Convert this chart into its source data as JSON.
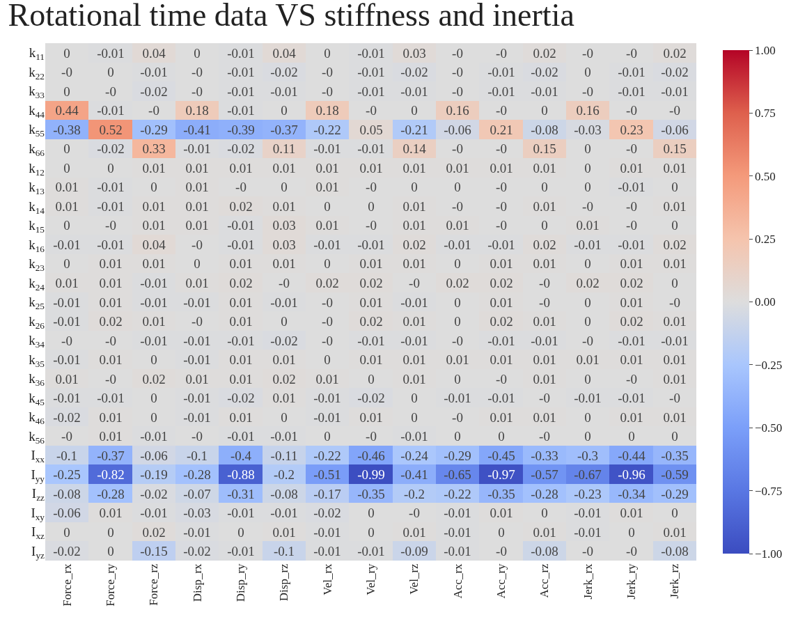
{
  "chart_data": {
    "type": "heatmap",
    "title": "Rotational time data VS stiffness and inertia",
    "categories": [
      "Force_rx",
      "Force_ry",
      "Force_rz",
      "Disp_rx",
      "Disp_ry",
      "Disp_rz",
      "Vel_rx",
      "Vel_ry",
      "Vel_rz",
      "Acc_rx",
      "Acc_ry",
      "Acc_rz",
      "Jerk_rx",
      "Jerk_ry",
      "Jerk_rz"
    ],
    "y_categories": [
      "k$_{11}$",
      "k$_{22}$",
      "k$_{33}$",
      "k$_{44}$",
      "k$_{55}$",
      "k$_{66}$",
      "k$_{12}$",
      "k$_{13}$",
      "k$_{14}$",
      "k$_{15}$",
      "k$_{16}$",
      "k$_{23}$",
      "k$_{24}$",
      "k$_{25}$",
      "k$_{26}$",
      "k$_{34}$",
      "k$_{35}$",
      "k$_{36}$",
      "k$_{45}$",
      "k$_{46}$",
      "k$_{56}$",
      "I$_{xx}$",
      "I$_{yy}$",
      "I$_{zz}$",
      "I$_{xy}$",
      "I$_{xz}$",
      "I$_{yz}$"
    ],
    "cell_labels": [
      [
        "0",
        "-0.01",
        "0.04",
        "0",
        "-0.01",
        "0.04",
        "0",
        "-0.01",
        "0.03",
        "-0",
        "-0",
        "0.02",
        "-0",
        "-0",
        "0.02"
      ],
      [
        "-0",
        "0",
        "-0.01",
        "-0",
        "-0.01",
        "-0.02",
        "-0",
        "-0.01",
        "-0.02",
        "-0",
        "-0.01",
        "-0.02",
        "0",
        "-0.01",
        "-0.02"
      ],
      [
        "0",
        "-0",
        "-0.02",
        "-0",
        "-0.01",
        "-0.01",
        "-0",
        "-0.01",
        "-0.01",
        "-0",
        "-0.01",
        "-0.01",
        "-0",
        "-0.01",
        "-0.01"
      ],
      [
        "0.44",
        "-0.01",
        "-0",
        "0.18",
        "-0.01",
        "0",
        "0.18",
        "-0",
        "0",
        "0.16",
        "-0",
        "0",
        "0.16",
        "-0",
        "-0"
      ],
      [
        "-0.38",
        "0.52",
        "-0.29",
        "-0.41",
        "-0.39",
        "-0.37",
        "-0.22",
        "0.05",
        "-0.21",
        "-0.06",
        "0.21",
        "-0.08",
        "-0.03",
        "0.23",
        "-0.06"
      ],
      [
        "0",
        "-0.02",
        "0.33",
        "-0.01",
        "-0.02",
        "0.11",
        "-0.01",
        "-0.01",
        "0.14",
        "-0",
        "-0",
        "0.15",
        "0",
        "-0",
        "0.15"
      ],
      [
        "0",
        "0",
        "0.01",
        "0.01",
        "0.01",
        "0.01",
        "0.01",
        "0.01",
        "0.01",
        "0.01",
        "0.01",
        "0.01",
        "0",
        "0.01",
        "0.01"
      ],
      [
        "0.01",
        "-0.01",
        "0",
        "0.01",
        "-0",
        "0",
        "0.01",
        "-0",
        "0",
        "0",
        "-0",
        "0",
        "0",
        "-0.01",
        "0"
      ],
      [
        "0.01",
        "-0.01",
        "0.01",
        "0.01",
        "0.02",
        "0.01",
        "0",
        "0",
        "0.01",
        "-0",
        "-0",
        "0.01",
        "-0",
        "-0",
        "0.01"
      ],
      [
        "0",
        "-0",
        "0.01",
        "0.01",
        "-0.01",
        "0.03",
        "0.01",
        "-0",
        "0.01",
        "0.01",
        "-0",
        "0",
        "0.01",
        "-0",
        "0"
      ],
      [
        "-0.01",
        "-0.01",
        "0.04",
        "-0",
        "-0.01",
        "0.03",
        "-0.01",
        "-0.01",
        "0.02",
        "-0.01",
        "-0.01",
        "0.02",
        "-0.01",
        "-0.01",
        "0.02"
      ],
      [
        "0",
        "0.01",
        "0.01",
        "0",
        "0.01",
        "0.01",
        "0",
        "0.01",
        "0.01",
        "0",
        "0.01",
        "0.01",
        "0",
        "0.01",
        "0.01"
      ],
      [
        "0.01",
        "0.01",
        "-0.01",
        "0.01",
        "0.02",
        "-0",
        "0.02",
        "0.02",
        "-0",
        "0.02",
        "0.02",
        "-0",
        "0.02",
        "0.02",
        "0"
      ],
      [
        "-0.01",
        "0.01",
        "-0.01",
        "-0.01",
        "0.01",
        "-0.01",
        "-0",
        "0.01",
        "-0.01",
        "0",
        "0.01",
        "-0",
        "0",
        "0.01",
        "-0"
      ],
      [
        "-0.01",
        "0.02",
        "0.01",
        "-0",
        "0.01",
        "0",
        "-0",
        "0.02",
        "0.01",
        "0",
        "0.02",
        "0.01",
        "0",
        "0.02",
        "0.01"
      ],
      [
        "-0",
        "-0",
        "-0.01",
        "-0.01",
        "-0.01",
        "-0.02",
        "-0",
        "-0.01",
        "-0.01",
        "-0",
        "-0.01",
        "-0.01",
        "-0",
        "-0.01",
        "-0.01"
      ],
      [
        "-0.01",
        "0.01",
        "0",
        "-0.01",
        "0.01",
        "0.01",
        "0",
        "0.01",
        "0.01",
        "0.01",
        "0.01",
        "0.01",
        "0.01",
        "0.01",
        "0.01"
      ],
      [
        "0.01",
        "-0",
        "0.02",
        "0.01",
        "0.01",
        "0.02",
        "0.01",
        "0",
        "0.01",
        "0",
        "-0",
        "0.01",
        "0",
        "-0",
        "0.01"
      ],
      [
        "-0.01",
        "-0.01",
        "0",
        "-0.01",
        "-0.02",
        "0.01",
        "-0.01",
        "-0.02",
        "0",
        "-0.01",
        "-0.01",
        "-0",
        "-0.01",
        "-0.01",
        "-0"
      ],
      [
        "-0.02",
        "0.01",
        "0",
        "-0.01",
        "0.01",
        "0",
        "-0.01",
        "0.01",
        "0",
        "-0",
        "0.01",
        "0.01",
        "0",
        "0.01",
        "0.01"
      ],
      [
        "-0",
        "0.01",
        "-0.01",
        "-0",
        "-0.01",
        "-0.01",
        "0",
        "-0",
        "-0.01",
        "0",
        "0",
        "-0",
        "0",
        "0",
        "0"
      ],
      [
        "-0.1",
        "-0.37",
        "-0.06",
        "-0.1",
        "-0.4",
        "-0.11",
        "-0.22",
        "-0.46",
        "-0.24",
        "-0.29",
        "-0.45",
        "-0.33",
        "-0.3",
        "-0.44",
        "-0.35"
      ],
      [
        "-0.25",
        "-0.82",
        "-0.19",
        "-0.28",
        "-0.88",
        "-0.2",
        "-0.51",
        "-0.99",
        "-0.41",
        "-0.65",
        "-0.97",
        "-0.57",
        "-0.67",
        "-0.96",
        "-0.59"
      ],
      [
        "-0.08",
        "-0.28",
        "-0.02",
        "-0.07",
        "-0.31",
        "-0.08",
        "-0.17",
        "-0.35",
        "-0.2",
        "-0.22",
        "-0.35",
        "-0.28",
        "-0.23",
        "-0.34",
        "-0.29"
      ],
      [
        "-0.06",
        "0.01",
        "-0.01",
        "-0.03",
        "-0.01",
        "-0.01",
        "-0.02",
        "0",
        "-0",
        "-0.01",
        "0.01",
        "0",
        "-0.01",
        "0.01",
        "0"
      ],
      [
        "0",
        "0",
        "0.02",
        "-0.01",
        "0",
        "0.01",
        "-0.01",
        "0",
        "0.01",
        "-0.01",
        "0",
        "0.01",
        "-0.01",
        "0",
        "0.01"
      ],
      [
        "-0.02",
        "0",
        "-0.15",
        "-0.02",
        "-0.01",
        "-0.1",
        "-0.01",
        "-0.01",
        "-0.09",
        "-0.01",
        "-0",
        "-0.08",
        "-0",
        "-0",
        "-0.08"
      ]
    ],
    "cells": [
      [
        0,
        -0.01,
        0.04,
        0,
        -0.01,
        0.04,
        0,
        -0.01,
        0.03,
        0,
        0,
        0.02,
        0,
        0,
        0.02
      ],
      [
        0,
        0,
        -0.01,
        0,
        -0.01,
        -0.02,
        0,
        -0.01,
        -0.02,
        0,
        -0.01,
        -0.02,
        0,
        -0.01,
        -0.02
      ],
      [
        0,
        0,
        -0.02,
        0,
        -0.01,
        -0.01,
        0,
        -0.01,
        -0.01,
        0,
        -0.01,
        -0.01,
        0,
        -0.01,
        -0.01
      ],
      [
        0.44,
        -0.01,
        0,
        0.18,
        -0.01,
        0,
        0.18,
        0,
        0,
        0.16,
        0,
        0,
        0.16,
        0,
        0
      ],
      [
        -0.38,
        0.52,
        -0.29,
        -0.41,
        -0.39,
        -0.37,
        -0.22,
        0.05,
        -0.21,
        -0.06,
        0.21,
        -0.08,
        -0.03,
        0.23,
        -0.06
      ],
      [
        0,
        -0.02,
        0.33,
        -0.01,
        -0.02,
        0.11,
        -0.01,
        -0.01,
        0.14,
        0,
        0,
        0.15,
        0,
        0,
        0.15
      ],
      [
        0,
        0,
        0.01,
        0.01,
        0.01,
        0.01,
        0.01,
        0.01,
        0.01,
        0.01,
        0.01,
        0.01,
        0,
        0.01,
        0.01
      ],
      [
        0.01,
        -0.01,
        0,
        0.01,
        0,
        0,
        0.01,
        0,
        0,
        0,
        0,
        0,
        0,
        -0.01,
        0
      ],
      [
        0.01,
        -0.01,
        0.01,
        0.01,
        0.02,
        0.01,
        0,
        0,
        0.01,
        0,
        0,
        0.01,
        0,
        0,
        0.01
      ],
      [
        0,
        0,
        0.01,
        0.01,
        -0.01,
        0.03,
        0.01,
        0,
        0.01,
        0.01,
        0,
        0,
        0.01,
        0,
        0
      ],
      [
        -0.01,
        -0.01,
        0.04,
        0,
        -0.01,
        0.03,
        -0.01,
        -0.01,
        0.02,
        -0.01,
        -0.01,
        0.02,
        -0.01,
        -0.01,
        0.02
      ],
      [
        0,
        0.01,
        0.01,
        0,
        0.01,
        0.01,
        0,
        0.01,
        0.01,
        0,
        0.01,
        0.01,
        0,
        0.01,
        0.01
      ],
      [
        0.01,
        0.01,
        -0.01,
        0.01,
        0.02,
        0,
        0.02,
        0.02,
        0,
        0.02,
        0.02,
        0,
        0.02,
        0.02,
        0
      ],
      [
        -0.01,
        0.01,
        -0.01,
        -0.01,
        0.01,
        -0.01,
        0,
        0.01,
        -0.01,
        0,
        0.01,
        0,
        0,
        0.01,
        0
      ],
      [
        -0.01,
        0.02,
        0.01,
        0,
        0.01,
        0,
        0,
        0.02,
        0.01,
        0,
        0.02,
        0.01,
        0,
        0.02,
        0.01
      ],
      [
        0,
        0,
        -0.01,
        -0.01,
        -0.01,
        -0.02,
        0,
        -0.01,
        -0.01,
        0,
        -0.01,
        -0.01,
        0,
        -0.01,
        -0.01
      ],
      [
        -0.01,
        0.01,
        0,
        -0.01,
        0.01,
        0.01,
        0,
        0.01,
        0.01,
        0.01,
        0.01,
        0.01,
        0.01,
        0.01,
        0.01
      ],
      [
        0.01,
        0,
        0.02,
        0.01,
        0.01,
        0.02,
        0.01,
        0,
        0.01,
        0,
        0,
        0.01,
        0,
        0,
        0.01
      ],
      [
        -0.01,
        -0.01,
        0,
        -0.01,
        -0.02,
        0.01,
        -0.01,
        -0.02,
        0,
        -0.01,
        -0.01,
        0,
        -0.01,
        -0.01,
        0
      ],
      [
        -0.02,
        0.01,
        0,
        -0.01,
        0.01,
        0,
        -0.01,
        0.01,
        0,
        0,
        0.01,
        0.01,
        0,
        0.01,
        0.01
      ],
      [
        0,
        0.01,
        -0.01,
        0,
        -0.01,
        -0.01,
        0,
        0,
        -0.01,
        0,
        0,
        0,
        0,
        0,
        0
      ],
      [
        -0.1,
        -0.37,
        -0.06,
        -0.1,
        -0.4,
        -0.11,
        -0.22,
        -0.46,
        -0.24,
        -0.29,
        -0.45,
        -0.33,
        -0.3,
        -0.44,
        -0.35
      ],
      [
        -0.25,
        -0.82,
        -0.19,
        -0.28,
        -0.88,
        -0.2,
        -0.51,
        -0.99,
        -0.41,
        -0.65,
        -0.97,
        -0.57,
        -0.67,
        -0.96,
        -0.59
      ],
      [
        -0.08,
        -0.28,
        -0.02,
        -0.07,
        -0.31,
        -0.08,
        -0.17,
        -0.35,
        -0.2,
        -0.22,
        -0.35,
        -0.28,
        -0.23,
        -0.34,
        -0.29
      ],
      [
        -0.06,
        0.01,
        -0.01,
        -0.03,
        -0.01,
        -0.01,
        -0.02,
        0,
        0,
        -0.01,
        0.01,
        0,
        -0.01,
        0.01,
        0
      ],
      [
        0,
        0,
        0.02,
        -0.01,
        0,
        0.01,
        -0.01,
        0,
        0.01,
        -0.01,
        0,
        0.01,
        -0.01,
        0,
        0.01
      ],
      [
        -0.02,
        0,
        -0.15,
        -0.02,
        -0.01,
        -0.1,
        -0.01,
        -0.01,
        -0.09,
        -0.01,
        0,
        -0.08,
        0,
        0,
        -0.08
      ]
    ],
    "clim": [
      -1,
      1
    ],
    "cticks": [
      {
        "value": -1,
        "label": "−1.00"
      },
      {
        "value": -0.75,
        "label": "−0.75"
      },
      {
        "value": -0.5,
        "label": "−0.50"
      },
      {
        "value": -0.25,
        "label": "−0.25"
      },
      {
        "value": 0,
        "label": "0.00"
      },
      {
        "value": 0.25,
        "label": "0.25"
      },
      {
        "value": 0.5,
        "label": "0.50"
      },
      {
        "value": 0.75,
        "label": "0.75"
      },
      {
        "value": 1,
        "label": "1.00"
      }
    ]
  }
}
